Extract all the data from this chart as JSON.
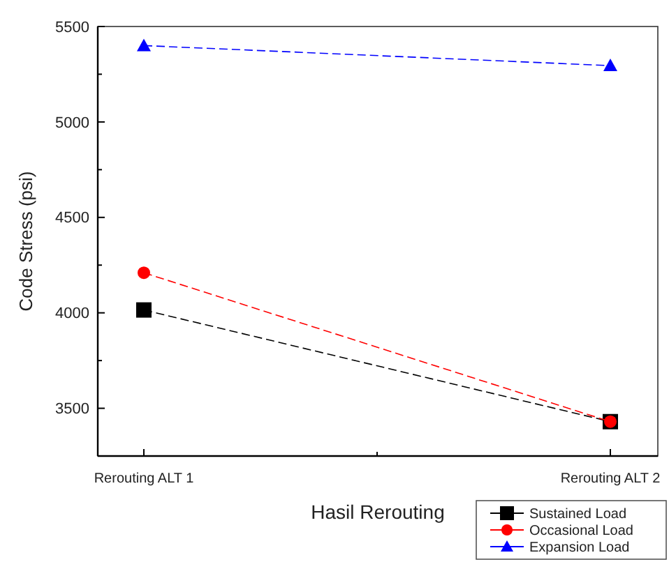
{
  "chart_data": {
    "type": "line",
    "xlabel": "Hasil Rerouting",
    "ylabel": "Code Stress (psi)",
    "categories": [
      "Rerouting ALT 1",
      "Rerouting ALT 2"
    ],
    "series": [
      {
        "name": "Sustained Load",
        "color": "#000000",
        "marker": "square",
        "values": [
          4015,
          3430
        ]
      },
      {
        "name": "Occasional Load",
        "color": "#ff0000",
        "marker": "circle",
        "values": [
          4210,
          3430
        ]
      },
      {
        "name": "Expansion Load",
        "color": "#0000ff",
        "marker": "triangle",
        "values": [
          5400,
          5295
        ]
      }
    ],
    "ylim": [
      3250,
      5500
    ],
    "yticks": [
      3500,
      {
        "value": 3750,
        "label": null
      },
      4000,
      {
        "value": 4250,
        "label": null
      },
      4500,
      {
        "value": 4750,
        "label": null
      },
      5000,
      {
        "value": 5250,
        "label": null
      },
      5500
    ],
    "line_style": "dashed",
    "legend": "bottom right",
    "grid": false
  }
}
